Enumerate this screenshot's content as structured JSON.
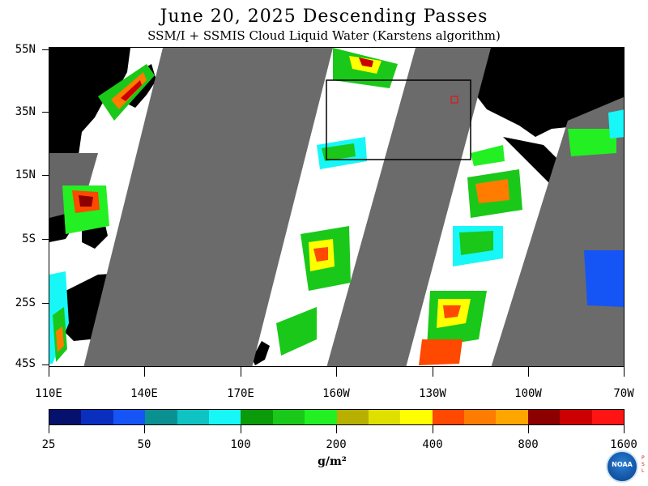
{
  "title": "June 20, 2025  Descending Passes",
  "subtitle": "SSM/I + SSMIS Cloud Liquid Water (Karstens algorithm)",
  "map": {
    "lat_labels": [
      "55N",
      "35N",
      "15N",
      "5S",
      "25S",
      "45S"
    ],
    "lon_labels": [
      "110E",
      "140E",
      "170E",
      "160W",
      "130W",
      "100W",
      "70W"
    ]
  },
  "colorbar": {
    "colors": [
      "#06116e",
      "#0a2fbf",
      "#1555f5",
      "#0a9090",
      "#10c3c3",
      "#18f7f7",
      "#0a9a0a",
      "#1ac81a",
      "#22f022",
      "#b8b000",
      "#e0e000",
      "#ffff00",
      "#ff4800",
      "#ff7c00",
      "#ffa500",
      "#8c0000",
      "#cc0000",
      "#ff1414"
    ],
    "tick_labels": [
      "25",
      "50",
      "100",
      "200",
      "400",
      "800",
      "1600"
    ],
    "units": "g/m²"
  },
  "logo": {
    "text": "NOAA"
  }
}
